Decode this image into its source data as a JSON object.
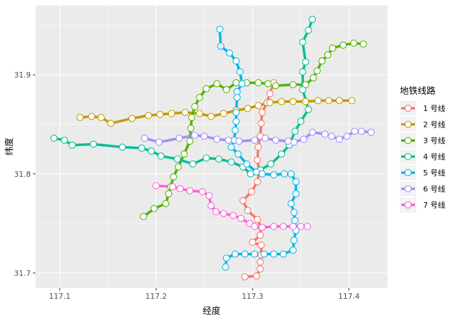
{
  "chart_data": {
    "type": "line",
    "xlabel": "经度",
    "ylabel": "纬度",
    "xlim": [
      117.075,
      117.44
    ],
    "ylim": [
      31.685,
      31.97
    ],
    "x_ticks": [
      {
        "value": 117.1,
        "label": "117.1"
      },
      {
        "value": 117.2,
        "label": "117.2"
      },
      {
        "value": 117.3,
        "label": "117.3"
      },
      {
        "value": 117.4,
        "label": "117.4"
      }
    ],
    "y_ticks": [
      {
        "value": 31.7,
        "label": "31.7"
      },
      {
        "value": 31.8,
        "label": "31.8"
      },
      {
        "value": 31.9,
        "label": "31.9"
      }
    ],
    "grid": true,
    "legend": {
      "title": "地铁线路",
      "position": "right"
    },
    "series": [
      {
        "name": "1 号线",
        "color": "#F8766D",
        "points": [
          [
            117.322,
            31.892
          ],
          [
            117.318,
            31.881
          ],
          [
            117.315,
            31.872
          ],
          [
            117.31,
            31.862
          ],
          [
            117.309,
            31.851
          ],
          [
            117.308,
            31.838
          ],
          [
            117.306,
            31.827
          ],
          [
            117.305,
            31.814
          ],
          [
            117.307,
            31.803
          ],
          [
            117.305,
            31.792
          ],
          [
            117.299,
            31.782
          ],
          [
            117.29,
            31.773
          ],
          [
            117.295,
            31.763
          ],
          [
            117.305,
            31.754
          ],
          [
            117.309,
            31.746
          ],
          [
            117.308,
            31.738
          ],
          [
            117.3,
            31.731
          ],
          [
            117.309,
            31.728
          ],
          [
            117.309,
            31.718
          ],
          [
            117.308,
            31.711
          ],
          [
            117.308,
            31.704
          ],
          [
            117.304,
            31.697
          ],
          [
            117.292,
            31.696
          ]
        ]
      },
      {
        "name": "2 号线",
        "color": "#C49A00",
        "points": [
          [
            117.121,
            31.857
          ],
          [
            117.133,
            31.858
          ],
          [
            117.143,
            31.857
          ],
          [
            117.153,
            31.851
          ],
          [
            117.175,
            31.856
          ],
          [
            117.192,
            31.859
          ],
          [
            117.204,
            31.86
          ],
          [
            117.216,
            31.861
          ],
          [
            117.23,
            31.862
          ],
          [
            117.245,
            31.861
          ],
          [
            117.257,
            31.858
          ],
          [
            117.27,
            31.861
          ],
          [
            117.283,
            31.864
          ],
          [
            117.295,
            31.866
          ],
          [
            117.306,
            31.869
          ],
          [
            117.318,
            31.872
          ],
          [
            117.33,
            31.873
          ],
          [
            117.342,
            31.873
          ],
          [
            117.355,
            31.873
          ],
          [
            117.368,
            31.874
          ],
          [
            117.379,
            31.874
          ],
          [
            117.39,
            31.874
          ],
          [
            117.403,
            31.874
          ]
        ]
      },
      {
        "name": "3 号线",
        "color": "#53B400",
        "points": [
          [
            117.187,
            31.757
          ],
          [
            117.198,
            31.765
          ],
          [
            117.21,
            31.77
          ],
          [
            117.213,
            31.78
          ],
          [
            117.215,
            31.787
          ],
          [
            117.218,
            31.797
          ],
          [
            117.223,
            31.807
          ],
          [
            117.229,
            31.82
          ],
          [
            117.235,
            31.833
          ],
          [
            117.236,
            31.846
          ],
          [
            117.237,
            31.857
          ],
          [
            117.24,
            31.868
          ],
          [
            117.245,
            31.877
          ],
          [
            117.252,
            31.886
          ],
          [
            117.263,
            31.891
          ],
          [
            117.273,
            31.885
          ],
          [
            117.283,
            31.892
          ],
          [
            117.294,
            31.892
          ],
          [
            117.306,
            31.892
          ],
          [
            117.316,
            31.891
          ],
          [
            117.324,
            31.889
          ],
          [
            117.342,
            31.89
          ],
          [
            117.355,
            31.89
          ],
          [
            117.363,
            31.897
          ],
          [
            117.367,
            31.904
          ],
          [
            117.372,
            31.914
          ],
          [
            117.378,
            31.92
          ],
          [
            117.383,
            31.927
          ],
          [
            117.394,
            31.93
          ],
          [
            117.405,
            31.932
          ],
          [
            117.415,
            31.931
          ]
        ]
      },
      {
        "name": "4 号线",
        "color": "#00C094",
        "points": [
          [
            117.094,
            31.836
          ],
          [
            117.105,
            31.834
          ],
          [
            117.113,
            31.829
          ],
          [
            117.135,
            31.83
          ],
          [
            117.165,
            31.827
          ],
          [
            117.185,
            31.826
          ],
          [
            117.195,
            31.823
          ],
          [
            117.205,
            31.818
          ],
          [
            117.222,
            31.815
          ],
          [
            117.238,
            31.81
          ],
          [
            117.252,
            31.816
          ],
          [
            117.265,
            31.815
          ],
          [
            117.278,
            31.812
          ],
          [
            117.29,
            31.807
          ],
          [
            117.298,
            31.8
          ],
          [
            117.308,
            31.804
          ],
          [
            117.319,
            31.81
          ],
          [
            117.33,
            31.82
          ],
          [
            117.338,
            31.829
          ],
          [
            117.344,
            31.843
          ],
          [
            117.35,
            31.853
          ],
          [
            117.358,
            31.865
          ],
          [
            117.352,
            31.885
          ],
          [
            117.352,
            31.903
          ],
          [
            117.355,
            31.913
          ],
          [
            117.352,
            31.933
          ],
          [
            117.358,
            31.945
          ],
          [
            117.362,
            31.956
          ]
        ]
      },
      {
        "name": "5 号线",
        "color": "#00B6EB",
        "points": [
          [
            117.266,
            31.946
          ],
          [
            117.267,
            31.929
          ],
          [
            117.276,
            31.922
          ],
          [
            117.283,
            31.914
          ],
          [
            117.287,
            31.903
          ],
          [
            117.289,
            31.891
          ],
          [
            117.284,
            31.883
          ],
          [
            117.284,
            31.877
          ],
          [
            117.283,
            31.862
          ],
          [
            117.283,
            31.853
          ],
          [
            117.282,
            31.844
          ],
          [
            117.281,
            31.834
          ],
          [
            117.278,
            31.827
          ],
          [
            117.285,
            31.82
          ],
          [
            117.294,
            31.81
          ],
          [
            117.304,
            31.802
          ],
          [
            117.31,
            31.8
          ],
          [
            117.322,
            31.799
          ],
          [
            117.333,
            31.8
          ],
          [
            117.34,
            31.8
          ],
          [
            117.345,
            31.792
          ],
          [
            117.345,
            31.78
          ],
          [
            117.34,
            31.77
          ],
          [
            117.343,
            31.761
          ],
          [
            117.344,
            31.753
          ],
          [
            117.345,
            31.743
          ],
          [
            117.343,
            31.733
          ],
          [
            117.342,
            31.723
          ],
          [
            117.332,
            31.719
          ],
          [
            117.322,
            31.719
          ],
          [
            117.312,
            31.719
          ],
          [
            117.302,
            31.719
          ],
          [
            117.292,
            31.719
          ],
          [
            117.282,
            31.719
          ],
          [
            117.273,
            31.715
          ],
          [
            117.272,
            31.706
          ]
        ]
      },
      {
        "name": "6 号线",
        "color": "#A58AFF",
        "points": [
          [
            117.188,
            31.836
          ],
          [
            117.203,
            31.832
          ],
          [
            117.224,
            31.836
          ],
          [
            117.24,
            31.839
          ],
          [
            117.25,
            31.838
          ],
          [
            117.263,
            31.835
          ],
          [
            117.275,
            31.834
          ],
          [
            117.286,
            31.833
          ],
          [
            117.302,
            31.834
          ],
          [
            117.313,
            31.836
          ],
          [
            117.324,
            31.834
          ],
          [
            117.337,
            31.833
          ],
          [
            117.343,
            31.832
          ],
          [
            117.353,
            31.835
          ],
          [
            117.362,
            31.842
          ],
          [
            117.375,
            31.84
          ],
          [
            117.382,
            31.838
          ],
          [
            117.39,
            31.835
          ],
          [
            117.398,
            31.838
          ],
          [
            117.406,
            31.843
          ],
          [
            117.413,
            31.843
          ],
          [
            117.423,
            31.842
          ]
        ]
      },
      {
        "name": "7 号线",
        "color": "#FB61D7",
        "points": [
          [
            117.2,
            31.788
          ],
          [
            117.217,
            31.787
          ],
          [
            117.225,
            31.785
          ],
          [
            117.235,
            31.783
          ],
          [
            117.248,
            31.782
          ],
          [
            117.255,
            31.778
          ],
          [
            117.257,
            31.768
          ],
          [
            117.262,
            31.762
          ],
          [
            117.27,
            31.76
          ],
          [
            117.28,
            31.758
          ],
          [
            117.288,
            31.755
          ],
          [
            117.297,
            31.75
          ],
          [
            117.302,
            31.747
          ],
          [
            117.31,
            31.746
          ],
          [
            117.322,
            31.747
          ],
          [
            117.332,
            31.747
          ],
          [
            117.342,
            31.747
          ],
          [
            117.35,
            31.747
          ],
          [
            117.357,
            31.747
          ]
        ]
      }
    ]
  }
}
